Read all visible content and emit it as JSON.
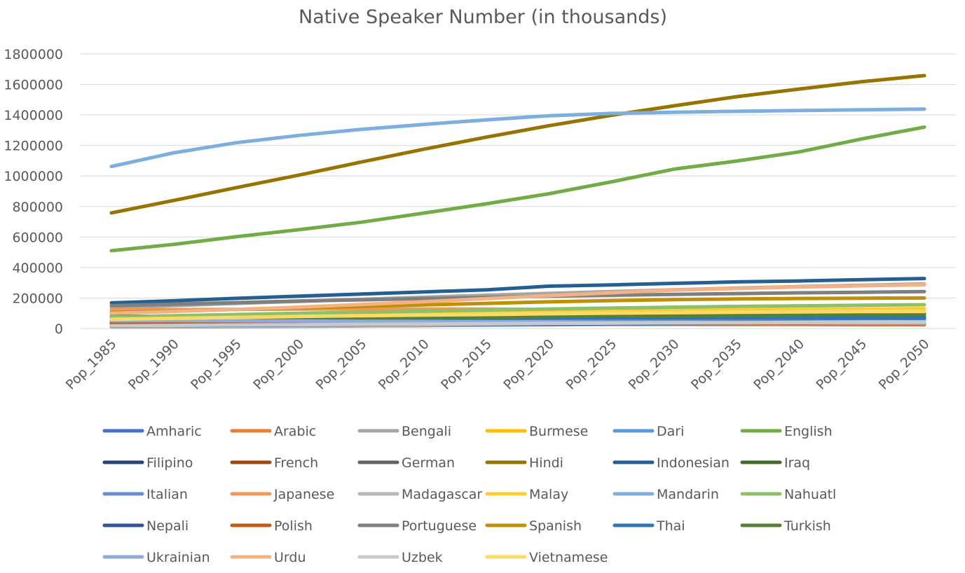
{
  "chart_data": {
    "type": "line",
    "title": "Native Speaker Number (in thousands)",
    "xlabel": "",
    "ylabel": "",
    "ylim": [
      0,
      1800000
    ],
    "yticks": [
      0,
      200000,
      400000,
      600000,
      800000,
      1000000,
      1200000,
      1400000,
      1600000,
      1800000
    ],
    "grid": true,
    "legend_position": "bottom",
    "categories": [
      "Pop_1985",
      "Pop_1990",
      "Pop_1995",
      "Pop_2000",
      "Pop_2005",
      "Pop_2010",
      "Pop_2015",
      "Pop_2020",
      "Pop_2025",
      "Pop_2030",
      "Pop_2035",
      "Pop_2040",
      "Pop_2045",
      "Pop_2050"
    ],
    "series": [
      {
        "name": "Amharic",
        "color": "#4472C4",
        "values": [
          18000,
          21000,
          24000,
          28000,
          32000,
          36000,
          41000,
          46000,
          51000,
          56000,
          61000,
          66000,
          71000,
          76000
        ]
      },
      {
        "name": "Arabic",
        "color": "#ED7D31",
        "values": [
          30000,
          30000,
          29000,
          29000,
          29000,
          28000,
          28000,
          27000,
          27000,
          27000,
          26000,
          26000,
          25000,
          25000
        ]
      },
      {
        "name": "Bengali",
        "color": "#A5A5A5",
        "values": [
          135000,
          150000,
          165000,
          178000,
          192000,
          205000,
          218000,
          230000,
          242000,
          254000,
          265000,
          275000,
          284000,
          292000
        ]
      },
      {
        "name": "Burmese",
        "color": "#FFC000",
        "values": [
          28000,
          30000,
          33000,
          36000,
          38000,
          40000,
          42000,
          44000,
          46000,
          47000,
          48000,
          49000,
          50000,
          50000
        ]
      },
      {
        "name": "Dari",
        "color": "#5B9BD5",
        "values": [
          10000,
          11000,
          13000,
          15000,
          17000,
          19000,
          22000,
          25000,
          28000,
          31000,
          34000,
          37000,
          40000,
          43000
        ]
      },
      {
        "name": "English",
        "color": "#70AD47",
        "values": [
          510000,
          552000,
          602000,
          648000,
          697000,
          757000,
          818000,
          884000,
          962000,
          1045000,
          1098000,
          1158000,
          1243000,
          1320000
        ]
      },
      {
        "name": "Filipino",
        "color": "#264478",
        "values": [
          55000,
          58000,
          62000,
          66000,
          70000,
          74000,
          78000,
          82000,
          86000,
          89000,
          92000,
          94000,
          96000,
          98000
        ]
      },
      {
        "name": "French",
        "color": "#9E480E",
        "values": [
          60000,
          62000,
          64000,
          66000,
          68000,
          70000,
          72000,
          73000,
          74000,
          75000,
          75000,
          76000,
          76000,
          76000
        ]
      },
      {
        "name": "German",
        "color": "#636363",
        "values": [
          80000,
          81000,
          82000,
          83000,
          83000,
          83000,
          83000,
          82000,
          82000,
          81000,
          80000,
          79000,
          78000,
          77000
        ]
      },
      {
        "name": "Hindi",
        "color": "#997300",
        "values": [
          758000,
          840000,
          924000,
          1006000,
          1092000,
          1176000,
          1255000,
          1330000,
          1398000,
          1460000,
          1520000,
          1570000,
          1618000,
          1658000
        ]
      },
      {
        "name": "Indonesian",
        "color": "#255E91",
        "values": [
          168000,
          182000,
          198000,
          212000,
          226000,
          240000,
          254000,
          278000,
          286000,
          296000,
          306000,
          312000,
          320000,
          328000
        ]
      },
      {
        "name": "Iraq",
        "color": "#43682B",
        "values": [
          16000,
          18000,
          20000,
          23000,
          26000,
          30000,
          34000,
          38000,
          42000,
          46000,
          50000,
          54000,
          58000,
          62000
        ]
      },
      {
        "name": "Italian",
        "color": "#698ED0",
        "values": [
          57000,
          57000,
          57000,
          57000,
          58000,
          59000,
          60000,
          59000,
          58000,
          58000,
          57000,
          56000,
          55000,
          54000
        ]
      },
      {
        "name": "Japanese",
        "color": "#F1975A",
        "values": [
          121000,
          124000,
          126000,
          127000,
          128000,
          128000,
          127000,
          126000,
          123000,
          120000,
          117000,
          113000,
          109000,
          105000
        ]
      },
      {
        "name": "Madagascar",
        "color": "#B7B7B7",
        "values": [
          10000,
          12000,
          14000,
          16000,
          18000,
          21000,
          24000,
          27000,
          30000,
          33000,
          36000,
          40000,
          44000,
          48000
        ]
      },
      {
        "name": "Malay",
        "color": "#FFCD33",
        "values": [
          75000,
          80000,
          85000,
          90000,
          95000,
          100000,
          105000,
          110000,
          114000,
          118000,
          122000,
          125000,
          128000,
          131000
        ]
      },
      {
        "name": "Mandarin",
        "color": "#7CAFDD",
        "values": [
          1062000,
          1152000,
          1218000,
          1266000,
          1306000,
          1338000,
          1368000,
          1395000,
          1410000,
          1418000,
          1424000,
          1429000,
          1434000,
          1438000
        ]
      },
      {
        "name": "Nahuatl",
        "color": "#8CC168",
        "values": [
          75000,
          84000,
          92000,
          100000,
          107000,
          114000,
          121000,
          128000,
          134000,
          140000,
          145000,
          149000,
          153000,
          156000
        ]
      },
      {
        "name": "Nepali",
        "color": "#2F5597",
        "values": [
          16000,
          19000,
          21000,
          23000,
          25000,
          27000,
          28000,
          29000,
          31000,
          33000,
          34000,
          35000,
          36000,
          37000
        ]
      },
      {
        "name": "Polish",
        "color": "#C55A11",
        "values": [
          37000,
          38000,
          38000,
          38000,
          38000,
          38000,
          38000,
          38000,
          37000,
          36000,
          35000,
          34000,
          33000,
          32000
        ]
      },
      {
        "name": "Portuguese",
        "color": "#7F7F7F",
        "values": [
          150000,
          160000,
          170000,
          180000,
          188000,
          196000,
          204000,
          212000,
          218000,
          224000,
          229000,
          234000,
          238000,
          242000
        ]
      },
      {
        "name": "Spanish",
        "color": "#BF9000",
        "values": [
          105000,
          115000,
          125000,
          135000,
          145000,
          155000,
          165000,
          175000,
          183000,
          189000,
          194000,
          197000,
          199000,
          200000
        ]
      },
      {
        "name": "Thai",
        "color": "#2E75B6",
        "values": [
          52000,
          56000,
          60000,
          62000,
          64000,
          66000,
          68000,
          70000,
          70000,
          70000,
          70000,
          69000,
          68000,
          67000
        ]
      },
      {
        "name": "Turkish",
        "color": "#548235",
        "values": [
          50000,
          55000,
          59000,
          63000,
          67000,
          71000,
          75000,
          79000,
          82000,
          85000,
          87000,
          89000,
          91000,
          93000
        ]
      },
      {
        "name": "Ukrainian",
        "color": "#8FAADC",
        "values": [
          51000,
          52000,
          51000,
          49000,
          47000,
          46000,
          44000,
          43000,
          41000,
          40000,
          38000,
          37000,
          36000,
          35000
        ]
      },
      {
        "name": "Urdu",
        "color": "#F4B183",
        "values": [
          100000,
          112000,
          125000,
          140000,
          158000,
          176000,
          196000,
          216000,
          234000,
          252000,
          262000,
          272000,
          280000,
          287000
        ]
      },
      {
        "name": "Uzbek",
        "color": "#C9C9C9",
        "values": [
          18000,
          20000,
          23000,
          25000,
          27000,
          29000,
          31000,
          33000,
          35000,
          37000,
          38000,
          40000,
          41000,
          42000
        ]
      },
      {
        "name": "Vietnamese",
        "color": "#FFD966",
        "values": [
          60000,
          67000,
          73000,
          79000,
          84000,
          88000,
          92000,
          97000,
          101000,
          104000,
          107000,
          109000,
          111000,
          112000
        ]
      }
    ]
  }
}
